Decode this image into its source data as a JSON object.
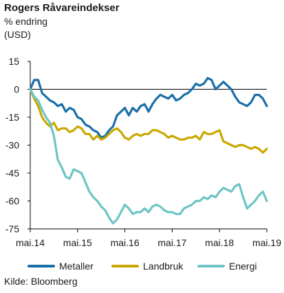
{
  "header": {
    "title": "Rogers Råvareindekser",
    "subtitle_line1": "% endring",
    "subtitle_line2": "(USD)"
  },
  "source": "Kilde: Bloomberg",
  "colors": {
    "metaller": "#1a6ea8",
    "landbruk": "#c8a800",
    "energi": "#6cc5c5",
    "axis": "#000000"
  },
  "chart_data": {
    "type": "line",
    "title": "Rogers Råvareindekser",
    "subtitle": "% endring (USD)",
    "xlabel": "",
    "ylabel": "",
    "xlim": [
      "2014-05",
      "2019-05"
    ],
    "ylim": [
      -75,
      15
    ],
    "yticks": [
      15,
      0,
      -15,
      -30,
      -45,
      -60,
      -75
    ],
    "ytick_labels": [
      "15",
      "0",
      "-15",
      "-30",
      "-45",
      "-60",
      "-75"
    ],
    "xtick_labels": [
      "mai.14",
      "mai.15",
      "mai.16",
      "mai.17",
      "mai.18",
      "mai.19"
    ],
    "grid": false,
    "legend_position": "bottom",
    "x": [
      "2014-05",
      "2014-06",
      "2014-07",
      "2014-08",
      "2014-09",
      "2014-10",
      "2014-11",
      "2014-12",
      "2015-01",
      "2015-02",
      "2015-03",
      "2015-04",
      "2015-05",
      "2015-06",
      "2015-07",
      "2015-08",
      "2015-09",
      "2015-10",
      "2015-11",
      "2015-12",
      "2016-01",
      "2016-02",
      "2016-03",
      "2016-04",
      "2016-05",
      "2016-06",
      "2016-07",
      "2016-08",
      "2016-09",
      "2016-10",
      "2016-11",
      "2016-12",
      "2017-01",
      "2017-02",
      "2017-03",
      "2017-04",
      "2017-05",
      "2017-06",
      "2017-07",
      "2017-08",
      "2017-09",
      "2017-10",
      "2017-11",
      "2017-12",
      "2018-01",
      "2018-02",
      "2018-03",
      "2018-04",
      "2018-05",
      "2018-06",
      "2018-07",
      "2018-08",
      "2018-09",
      "2018-10",
      "2018-11",
      "2018-12",
      "2019-01",
      "2019-02",
      "2019-03",
      "2019-04",
      "2019-05"
    ],
    "series": [
      {
        "name": "Metaller",
        "color": "#1a6ea8",
        "values": [
          0,
          5,
          5,
          -2,
          -4,
          -6,
          -7,
          -9,
          -8,
          -12,
          -10,
          -11,
          -15,
          -16,
          -19,
          -20,
          -22,
          -23,
          -26,
          -25,
          -22,
          -20,
          -14,
          -12,
          -10,
          -14,
          -10,
          -12,
          -9,
          -8,
          -12,
          -8,
          -5,
          -3,
          -4,
          -5,
          -3,
          -6,
          -5,
          -3,
          -2,
          0,
          3,
          2,
          3,
          6,
          5,
          0,
          2,
          4,
          2,
          0,
          -4,
          -7,
          -8,
          -9,
          -7,
          -3,
          -3,
          -5,
          -9
        ]
      },
      {
        "name": "Landbruk",
        "color": "#c8a800",
        "values": [
          0,
          -5,
          -9,
          -15,
          -18,
          -20,
          -18,
          -22,
          -21,
          -21,
          -23,
          -22,
          -20,
          -21,
          -24,
          -24,
          -27,
          -25,
          -27,
          -26,
          -24,
          -22,
          -21,
          -23,
          -26,
          -27,
          -25,
          -24,
          -25,
          -24,
          -24,
          -22,
          -22,
          -23,
          -24,
          -26,
          -25,
          -26,
          -27,
          -27,
          -26,
          -26,
          -25,
          -27,
          -23,
          -24,
          -24,
          -23,
          -22,
          -28,
          -29,
          -30,
          -31,
          -30,
          -30,
          -31,
          -32,
          -31,
          -32,
          -34,
          -32
        ]
      },
      {
        "name": "Energi",
        "color": "#6cc5c5",
        "values": [
          0,
          -4,
          -6,
          -11,
          -15,
          -18,
          -25,
          -38,
          -42,
          -47,
          -48,
          -43,
          -44,
          -45,
          -50,
          -55,
          -58,
          -60,
          -63,
          -65,
          -69,
          -72,
          -70,
          -66,
          -62,
          -64,
          -67,
          -66,
          -66,
          -64,
          -66,
          -63,
          -62,
          -63,
          -65,
          -66,
          -66,
          -67,
          -67,
          -64,
          -63,
          -62,
          -60,
          -60,
          -58,
          -59,
          -57,
          -58,
          -55,
          -53,
          -54,
          -55,
          -52,
          -51,
          -58,
          -64,
          -62,
          -60,
          -57,
          -55,
          -60
        ]
      }
    ]
  }
}
